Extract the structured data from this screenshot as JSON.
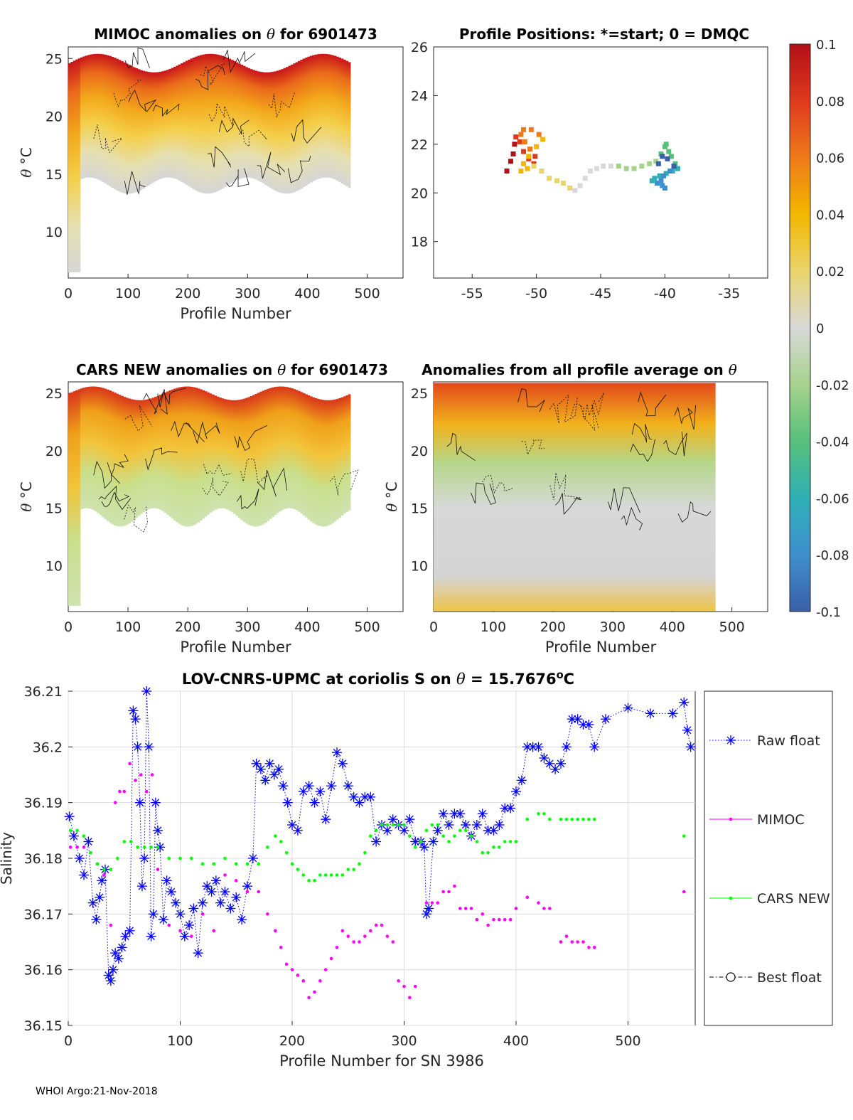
{
  "footer": {
    "stamp": "WHOI Argo:21-Nov-2018"
  },
  "colorbar": {
    "ticks": [
      "0.1",
      "0.08",
      "0.06",
      "0.04",
      "0.02",
      "0",
      "-0.02",
      "-0.04",
      "-0.06",
      "-0.08",
      "-0.1"
    ],
    "range": [
      -0.1,
      0.1
    ],
    "stops": [
      "#3a5fa7",
      "#3f8fcf",
      "#2fb0b6",
      "#57c07b",
      "#a7d28c",
      "#d9d9d9",
      "#e9d56b",
      "#f2b700",
      "#ef7a1a",
      "#de3a1d",
      "#b30f18"
    ]
  },
  "chart_data": [
    {
      "id": "mimoc-anomalies",
      "type": "heatmap",
      "title_prefix": "MIMOC anomalies on",
      "title_symbol": "θ",
      "title_suffix": "for 6901473",
      "xlabel": "Profile Number",
      "ylabel_symbol": "θ",
      "ylabel_unit": "°C",
      "xlim": [
        0,
        560
      ],
      "ylim": [
        6,
        26
      ],
      "xticks": [
        0,
        100,
        200,
        300,
        400,
        500
      ],
      "yticks": [
        10,
        15,
        20,
        25
      ]
    },
    {
      "id": "profile-positions",
      "type": "scatter",
      "title": "Profile Positions: *=start; 0 = DMQC",
      "xlim": [
        -58,
        -32
      ],
      "ylim": [
        16.5,
        26
      ],
      "xticks": [
        -55,
        -50,
        -45,
        -40,
        -35
      ],
      "yticks": [
        18,
        20,
        22,
        24,
        26
      ],
      "positions": [
        [
          -52.3,
          20.9
        ],
        [
          -52.0,
          21.3
        ],
        [
          -51.8,
          21.6
        ],
        [
          -51.7,
          22.0
        ],
        [
          -51.6,
          22.3
        ],
        [
          -51.3,
          22.1
        ],
        [
          -51.0,
          21.7
        ],
        [
          -50.6,
          21.4
        ],
        [
          -50.2,
          21.2
        ],
        [
          -50.1,
          21.5
        ],
        [
          -50.5,
          21.8
        ],
        [
          -50.9,
          22.1
        ],
        [
          -51.2,
          22.4
        ],
        [
          -51.0,
          22.6
        ],
        [
          -50.4,
          22.6
        ],
        [
          -49.8,
          22.4
        ],
        [
          -49.5,
          22.2
        ],
        [
          -50.0,
          21.9
        ],
        [
          -50.6,
          21.5
        ],
        [
          -51.0,
          21.2
        ],
        [
          -51.2,
          20.9
        ],
        [
          -50.7,
          21.0
        ],
        [
          -50.2,
          21.1
        ],
        [
          -49.6,
          20.9
        ],
        [
          -49.0,
          20.6
        ],
        [
          -48.4,
          20.5
        ],
        [
          -47.9,
          20.4
        ],
        [
          -47.4,
          20.2
        ],
        [
          -47.0,
          20.1
        ],
        [
          -46.6,
          20.3
        ],
        [
          -46.2,
          20.6
        ],
        [
          -45.8,
          20.9
        ],
        [
          -45.3,
          21.0
        ],
        [
          -44.8,
          21.1
        ],
        [
          -44.2,
          21.1
        ],
        [
          -43.6,
          21.1
        ],
        [
          -43.0,
          21.0
        ],
        [
          -42.4,
          21.0
        ],
        [
          -41.8,
          21.1
        ],
        [
          -41.2,
          21.2
        ],
        [
          -40.7,
          21.3
        ],
        [
          -40.3,
          21.6
        ],
        [
          -40.0,
          21.9
        ],
        [
          -39.9,
          22.0
        ],
        [
          -39.7,
          21.7
        ],
        [
          -39.5,
          21.5
        ],
        [
          -39.2,
          21.2
        ],
        [
          -39.0,
          21.0
        ],
        [
          -39.4,
          20.9
        ],
        [
          -39.9,
          20.8
        ],
        [
          -40.4,
          20.7
        ],
        [
          -40.8,
          20.6
        ],
        [
          -41.0,
          20.5
        ],
        [
          -40.6,
          20.4
        ],
        [
          -40.2,
          20.3
        ],
        [
          -40.0,
          20.2
        ],
        [
          -40.3,
          20.5
        ],
        [
          -40.1,
          20.7
        ],
        [
          -39.6,
          20.9
        ],
        [
          -39.3,
          21.1
        ],
        [
          -39.8,
          21.4
        ],
        [
          -40.2,
          21.5
        ],
        [
          -40.5,
          21.2
        ]
      ]
    },
    {
      "id": "cars-anomalies",
      "type": "heatmap",
      "title_prefix": "CARS NEW anomalies on",
      "title_symbol": "θ",
      "title_suffix": "for 6901473",
      "xlabel": "Profile Number",
      "ylabel_symbol": "θ",
      "ylabel_unit": "°C",
      "xlim": [
        0,
        560
      ],
      "ylim": [
        6,
        26
      ],
      "xticks": [
        0,
        100,
        200,
        300,
        400,
        500
      ],
      "yticks": [
        10,
        15,
        20,
        25
      ]
    },
    {
      "id": "profile-average-anomalies",
      "type": "heatmap",
      "title_prefix": "Anomalies from all profile average on",
      "title_symbol": "θ",
      "title_suffix": "",
      "xlabel": "Profile Number",
      "ylabel_symbol": "θ",
      "ylabel_unit": "°C",
      "xlim": [
        0,
        560
      ],
      "ylim": [
        6,
        26
      ],
      "xticks": [
        0,
        100,
        200,
        300,
        400,
        500
      ],
      "yticks": [
        10,
        15,
        20,
        25
      ]
    },
    {
      "id": "salinity-series",
      "type": "line",
      "title_prefix": "LOV-CNRS-UPMC at coriolis S on",
      "title_symbol": "θ",
      "title_value": "= 15.7676",
      "title_unit": "°C",
      "xlabel": "Profile Number for SN 3986",
      "ylabel": "Salinity",
      "xlim": [
        0,
        560
      ],
      "ylim": [
        36.15,
        36.21
      ],
      "xticks": [
        0,
        100,
        200,
        300,
        400,
        500
      ],
      "yticks": [
        "36.15",
        "36.16",
        "36.17",
        "36.18",
        "36.19",
        "36.2",
        "36.21"
      ],
      "legend": [
        "Raw float",
        "MIMOC",
        "CARS NEW",
        "Best float"
      ],
      "series": [
        {
          "name": "Raw float",
          "color": "#0000ff",
          "x": [
            1,
            5,
            10,
            14,
            18,
            22,
            25,
            28,
            30,
            33,
            36,
            38,
            40,
            42,
            45,
            48,
            51,
            55,
            58,
            60,
            62,
            64,
            66,
            68,
            70,
            72,
            74,
            76,
            78,
            80,
            82,
            85,
            88,
            92,
            96,
            100,
            104,
            108,
            112,
            116,
            120,
            124,
            128,
            132,
            136,
            140,
            145,
            150,
            155,
            160,
            165,
            168,
            172,
            176,
            180,
            184,
            188,
            192,
            196,
            200,
            205,
            210,
            215,
            220,
            225,
            230,
            235,
            240,
            245,
            250,
            255,
            260,
            265,
            270,
            275,
            280,
            285,
            290,
            295,
            300,
            305,
            310,
            315,
            318,
            320,
            322,
            326,
            330,
            335,
            340,
            345,
            350,
            355,
            360,
            365,
            370,
            375,
            380,
            385,
            390,
            395,
            400,
            405,
            410,
            415,
            420,
            425,
            430,
            435,
            440,
            445,
            450,
            455,
            460,
            465,
            470,
            480,
            500,
            520,
            540,
            550,
            553,
            556
          ],
          "y": [
            36.1875,
            36.184,
            36.18,
            36.177,
            36.183,
            36.172,
            36.169,
            36.173,
            36.176,
            36.178,
            36.159,
            36.158,
            36.16,
            36.163,
            36.162,
            36.164,
            36.166,
            36.167,
            36.2065,
            36.205,
            36.2,
            36.19,
            36.175,
            36.18,
            36.21,
            36.2,
            36.166,
            36.17,
            36.19,
            36.185,
            36.182,
            36.169,
            36.176,
            36.174,
            36.172,
            36.17,
            36.166,
            36.168,
            36.171,
            36.163,
            36.172,
            36.175,
            36.174,
            36.176,
            36.172,
            36.174,
            36.171,
            36.173,
            36.169,
            36.175,
            36.18,
            36.197,
            36.196,
            36.194,
            36.197,
            36.195,
            36.196,
            36.193,
            36.19,
            36.186,
            36.185,
            36.192,
            36.193,
            36.19,
            36.192,
            36.187,
            36.193,
            36.199,
            36.197,
            36.193,
            36.191,
            36.19,
            36.191,
            36.191,
            36.183,
            36.186,
            36.185,
            36.187,
            36.186,
            36.185,
            36.187,
            36.183,
            36.183,
            36.182,
            36.17,
            36.171,
            36.183,
            36.185,
            36.188,
            36.186,
            36.188,
            36.188,
            36.186,
            36.184,
            36.186,
            36.188,
            36.185,
            36.185,
            36.186,
            36.189,
            36.189,
            36.192,
            36.194,
            36.2,
            36.2,
            36.2,
            36.198,
            36.197,
            36.196,
            36.197,
            36.2,
            36.205,
            36.205,
            36.204,
            36.204,
            36.2,
            36.205,
            36.207,
            36.206,
            36.206,
            36.208,
            36.203,
            36.2
          ],
          "style": "dotted-star"
        },
        {
          "name": "MIMOC",
          "color": "#ff00ff",
          "x": [
            2,
            8,
            14,
            20,
            26,
            32,
            38,
            42,
            46,
            50,
            55,
            60,
            65,
            70,
            75,
            80,
            90,
            100,
            110,
            120,
            130,
            140,
            150,
            160,
            170,
            178,
            185,
            190,
            195,
            200,
            205,
            210,
            215,
            220,
            225,
            230,
            235,
            240,
            245,
            250,
            255,
            260,
            265,
            270,
            275,
            280,
            285,
            290,
            295,
            300,
            305,
            310,
            320,
            325,
            330,
            335,
            340,
            345,
            350,
            355,
            360,
            365,
            370,
            375,
            380,
            385,
            390,
            395,
            400,
            410,
            420,
            425,
            430,
            440,
            445,
            450,
            455,
            460,
            465,
            470,
            550
          ],
          "y": [
            36.182,
            36.182,
            36.182,
            36.181,
            36.179,
            36.177,
            36.168,
            36.19,
            36.192,
            36.192,
            36.197,
            36.194,
            36.195,
            36.192,
            36.195,
            36.178,
            36.168,
            36.167,
            36.166,
            36.17,
            36.167,
            36.177,
            36.176,
            36.174,
            36.174,
            36.17,
            36.167,
            36.164,
            36.161,
            36.16,
            36.159,
            36.158,
            36.155,
            36.156,
            36.158,
            36.16,
            36.162,
            36.164,
            36.167,
            36.166,
            36.165,
            36.165,
            36.166,
            36.167,
            36.168,
            36.168,
            36.166,
            36.165,
            36.158,
            36.157,
            36.155,
            36.157,
            36.172,
            36.172,
            36.172,
            36.174,
            36.174,
            36.175,
            36.171,
            36.171,
            36.171,
            36.169,
            36.17,
            36.168,
            36.169,
            36.169,
            36.169,
            36.169,
            36.171,
            36.173,
            36.172,
            36.171,
            36.171,
            36.165,
            36.166,
            36.165,
            36.165,
            36.165,
            36.164,
            36.164,
            36.174
          ],
          "style": "dot"
        },
        {
          "name": "CARS NEW",
          "color": "#00ff00",
          "x": [
            2,
            8,
            14,
            20,
            26,
            32,
            38,
            44,
            50,
            56,
            62,
            68,
            74,
            80,
            90,
            100,
            110,
            120,
            130,
            140,
            150,
            160,
            170,
            178,
            185,
            190,
            195,
            200,
            205,
            210,
            215,
            220,
            225,
            230,
            235,
            240,
            245,
            250,
            255,
            260,
            265,
            270,
            275,
            280,
            285,
            290,
            295,
            300,
            305,
            310,
            315,
            320,
            325,
            330,
            335,
            340,
            345,
            350,
            355,
            360,
            365,
            370,
            375,
            380,
            385,
            390,
            395,
            400,
            410,
            420,
            425,
            430,
            440,
            445,
            450,
            455,
            460,
            465,
            470,
            550
          ],
          "y": [
            36.185,
            36.185,
            36.184,
            36.181,
            36.179,
            36.178,
            36.178,
            36.18,
            36.183,
            36.183,
            36.182,
            36.182,
            36.182,
            36.182,
            36.18,
            36.18,
            36.18,
            36.179,
            36.179,
            36.18,
            36.179,
            36.179,
            36.179,
            36.182,
            36.184,
            36.183,
            36.181,
            36.179,
            36.178,
            36.177,
            36.176,
            36.176,
            36.177,
            36.177,
            36.177,
            36.177,
            36.177,
            36.178,
            36.178,
            36.179,
            36.181,
            36.184,
            36.185,
            36.186,
            36.186,
            36.186,
            36.186,
            36.186,
            36.184,
            36.182,
            36.183,
            36.185,
            36.186,
            36.186,
            36.184,
            36.183,
            36.184,
            36.185,
            36.185,
            36.184,
            36.183,
            36.181,
            36.181,
            36.182,
            36.182,
            36.183,
            36.183,
            36.183,
            36.187,
            36.188,
            36.188,
            36.187,
            36.187,
            36.187,
            36.187,
            36.187,
            36.187,
            36.187,
            36.187,
            36.184
          ],
          "style": "dot"
        },
        {
          "name": "Best float",
          "color": "#000000",
          "x": [],
          "y": [],
          "style": "dashdot-circle"
        }
      ]
    }
  ]
}
